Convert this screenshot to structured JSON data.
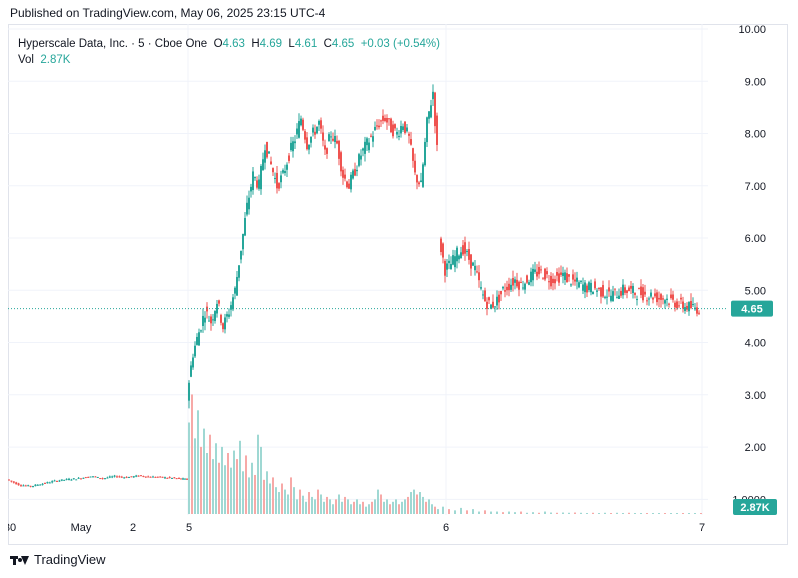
{
  "header": {
    "published": "Published on TradingView.com, May 06, 2025 23:15 UTC-4"
  },
  "legend": {
    "symbol": "Hyperscale Data, Inc. · 5 · Cboe One",
    "o_label": "O",
    "o": "4.63",
    "h_label": "H",
    "h": "4.69",
    "l_label": "L",
    "l": "4.61",
    "c_label": "C",
    "c": "4.65",
    "change": "+0.03 (+0.54%)",
    "vol_label": "Vol",
    "vol": "2.87K"
  },
  "footer": {
    "brand": "TradingView"
  },
  "colors": {
    "up": "#26a69a",
    "down": "#ef5350",
    "volUp": "#9fd8d3",
    "volDown": "#f7a9a7",
    "grid": "#f0f3fa"
  },
  "chart_data": {
    "type": "candlestick",
    "title": "Hyperscale Data, Inc. · 5 · Cboe One",
    "price_axis": {
      "min": 0.7,
      "max": 10.0,
      "ticks": [
        "10.00",
        "9.00",
        "8.00",
        "7.00",
        "6.00",
        "5.00",
        "4.00",
        "3.00",
        "2.00",
        "1.0000"
      ]
    },
    "time_axis": {
      "labels": [
        "30",
        "May",
        "2",
        "5",
        "6",
        "7"
      ]
    },
    "last_price": "4.65",
    "last_volume": "2.87K",
    "series": [
      {
        "name": "pre",
        "points": [
          [
            0,
            1.38
          ],
          [
            12,
            1.28
          ],
          [
            24,
            1.25
          ],
          [
            36,
            1.3
          ],
          [
            48,
            1.35
          ],
          [
            60,
            1.38
          ],
          [
            72,
            1.4
          ],
          [
            84,
            1.44
          ],
          [
            96,
            1.4
          ],
          [
            108,
            1.44
          ],
          [
            120,
            1.42
          ],
          [
            132,
            1.45
          ],
          [
            144,
            1.43
          ],
          [
            156,
            1.42
          ],
          [
            170,
            1.4
          ],
          [
            180,
            1.38
          ]
        ]
      },
      {
        "name": "day5",
        "points": [
          [
            180,
            3.0
          ],
          [
            186,
            3.8
          ],
          [
            192,
            4.2
          ],
          [
            198,
            4.6
          ],
          [
            204,
            4.4
          ],
          [
            210,
            4.8
          ],
          [
            216,
            4.3
          ],
          [
            222,
            4.6
          ],
          [
            228,
            5.0
          ],
          [
            234,
            5.8
          ],
          [
            240,
            6.6
          ],
          [
            246,
            7.2
          ],
          [
            252,
            7.0
          ],
          [
            258,
            7.8
          ],
          [
            264,
            7.4
          ],
          [
            270,
            7.0
          ],
          [
            276,
            7.2
          ],
          [
            282,
            7.6
          ],
          [
            288,
            7.9
          ],
          [
            294,
            8.3
          ],
          [
            300,
            7.8
          ],
          [
            306,
            8.0
          ],
          [
            312,
            8.2
          ],
          [
            318,
            7.6
          ],
          [
            324,
            8.0
          ],
          [
            330,
            7.8
          ],
          [
            336,
            7.2
          ],
          [
            342,
            7.0
          ],
          [
            348,
            7.3
          ],
          [
            354,
            7.6
          ],
          [
            360,
            7.8
          ],
          [
            366,
            8.0
          ],
          [
            372,
            8.2
          ],
          [
            378,
            8.3
          ],
          [
            384,
            8.1
          ],
          [
            390,
            8.0
          ],
          [
            396,
            8.2
          ],
          [
            402,
            7.9
          ],
          [
            408,
            7.2
          ],
          [
            414,
            7.0
          ],
          [
            420,
            8.2
          ],
          [
            426,
            8.8
          ],
          [
            430,
            7.7
          ]
        ]
      },
      {
        "name": "day6",
        "points": [
          [
            432,
            6.0
          ],
          [
            438,
            5.4
          ],
          [
            444,
            5.5
          ],
          [
            450,
            5.7
          ],
          [
            456,
            5.8
          ],
          [
            462,
            5.6
          ],
          [
            468,
            5.4
          ],
          [
            474,
            5.0
          ],
          [
            478,
            4.8
          ],
          [
            484,
            4.7
          ],
          [
            490,
            4.8
          ],
          [
            496,
            5.0
          ],
          [
            502,
            5.1
          ],
          [
            508,
            5.2
          ],
          [
            514,
            5.1
          ],
          [
            520,
            5.2
          ],
          [
            526,
            5.3
          ],
          [
            532,
            5.35
          ],
          [
            538,
            5.3
          ],
          [
            544,
            5.2
          ],
          [
            550,
            5.25
          ],
          [
            556,
            5.3
          ],
          [
            562,
            5.2
          ],
          [
            568,
            5.15
          ],
          [
            574,
            5.1
          ],
          [
            580,
            5.05
          ],
          [
            586,
            5.05
          ],
          [
            592,
            5.0
          ],
          [
            598,
            4.95
          ],
          [
            604,
            4.9
          ],
          [
            610,
            4.95
          ],
          [
            616,
            5.0
          ],
          [
            622,
            5.0
          ],
          [
            628,
            4.95
          ],
          [
            634,
            4.95
          ],
          [
            640,
            4.9
          ],
          [
            646,
            4.9
          ],
          [
            652,
            4.85
          ],
          [
            658,
            4.85
          ],
          [
            664,
            4.8
          ],
          [
            670,
            4.75
          ],
          [
            676,
            4.7
          ],
          [
            682,
            4.68
          ],
          [
            688,
            4.66
          ],
          [
            692,
            4.65
          ]
        ]
      }
    ],
    "volume": {
      "day5": [
        [
          180,
          0.75
        ],
        [
          183,
          0.98
        ],
        [
          186,
          0.62
        ],
        [
          189,
          0.85
        ],
        [
          192,
          0.55
        ],
        [
          195,
          0.7
        ],
        [
          198,
          0.5
        ],
        [
          201,
          0.65
        ],
        [
          204,
          0.45
        ],
        [
          207,
          0.58
        ],
        [
          210,
          0.42
        ],
        [
          213,
          0.55
        ],
        [
          216,
          0.4
        ],
        [
          219,
          0.5
        ],
        [
          222,
          0.38
        ],
        [
          225,
          0.52
        ],
        [
          228,
          0.45
        ],
        [
          231,
          0.6
        ],
        [
          234,
          0.35
        ],
        [
          237,
          0.48
        ],
        [
          240,
          0.3
        ],
        [
          243,
          0.42
        ],
        [
          246,
          0.32
        ],
        [
          249,
          0.65
        ],
        [
          252,
          0.55
        ],
        [
          255,
          0.28
        ],
        [
          258,
          0.35
        ],
        [
          261,
          0.25
        ],
        [
          264,
          0.3
        ],
        [
          267,
          0.22
        ],
        [
          270,
          0.18
        ],
        [
          273,
          0.25
        ],
        [
          276,
          0.2
        ],
        [
          279,
          0.16
        ],
        [
          282,
          0.3
        ],
        [
          285,
          0.22
        ],
        [
          288,
          0.12
        ],
        [
          291,
          0.2
        ],
        [
          294,
          0.15
        ],
        [
          297,
          0.1
        ],
        [
          300,
          0.18
        ],
        [
          303,
          0.14
        ],
        [
          306,
          0.12
        ],
        [
          309,
          0.2
        ],
        [
          312,
          0.16
        ],
        [
          315,
          0.1
        ],
        [
          318,
          0.14
        ],
        [
          321,
          0.12
        ],
        [
          324,
          0.08
        ],
        [
          327,
          0.12
        ],
        [
          330,
          0.16
        ],
        [
          333,
          0.1
        ],
        [
          336,
          0.14
        ],
        [
          339,
          0.12
        ],
        [
          342,
          0.08
        ],
        [
          345,
          0.1
        ],
        [
          348,
          0.12
        ],
        [
          351,
          0.08
        ],
        [
          354,
          0.1
        ],
        [
          357,
          0.06
        ],
        [
          360,
          0.08
        ],
        [
          363,
          0.1
        ],
        [
          366,
          0.12
        ],
        [
          369,
          0.2
        ],
        [
          372,
          0.16
        ],
        [
          375,
          0.1
        ],
        [
          378,
          0.12
        ],
        [
          381,
          0.08
        ],
        [
          384,
          0.1
        ],
        [
          387,
          0.12
        ],
        [
          390,
          0.08
        ],
        [
          393,
          0.1
        ],
        [
          396,
          0.12
        ],
        [
          399,
          0.14
        ],
        [
          402,
          0.18
        ],
        [
          405,
          0.2
        ],
        [
          408,
          0.16
        ],
        [
          411,
          0.18
        ],
        [
          414,
          0.14
        ],
        [
          417,
          0.1
        ],
        [
          420,
          0.12
        ],
        [
          423,
          0.08
        ],
        [
          426,
          0.06
        ],
        [
          429,
          0.04
        ]
      ],
      "day6": [
        [
          434,
          0.06
        ],
        [
          440,
          0.04
        ],
        [
          446,
          0.03
        ],
        [
          452,
          0.05
        ],
        [
          458,
          0.03
        ],
        [
          464,
          0.04
        ],
        [
          470,
          0.02
        ],
        [
          476,
          0.03
        ],
        [
          482,
          0.02
        ],
        [
          488,
          0.02
        ],
        [
          494,
          0.015
        ],
        [
          500,
          0.02
        ],
        [
          506,
          0.015
        ],
        [
          512,
          0.02
        ],
        [
          518,
          0.01
        ],
        [
          524,
          0.015
        ],
        [
          530,
          0.01
        ],
        [
          536,
          0.02
        ],
        [
          542,
          0.012
        ],
        [
          548,
          0.01
        ],
        [
          554,
          0.012
        ],
        [
          560,
          0.01
        ],
        [
          566,
          0.012
        ],
        [
          572,
          0.01
        ],
        [
          578,
          0.008
        ],
        [
          584,
          0.01
        ],
        [
          590,
          0.008
        ],
        [
          596,
          0.01
        ],
        [
          602,
          0.008
        ],
        [
          608,
          0.01
        ],
        [
          614,
          0.008
        ],
        [
          620,
          0.01
        ],
        [
          626,
          0.006
        ],
        [
          632,
          0.008
        ],
        [
          638,
          0.006
        ],
        [
          644,
          0.008
        ],
        [
          650,
          0.006
        ],
        [
          656,
          0.008
        ],
        [
          662,
          0.006
        ],
        [
          668,
          0.006
        ],
        [
          674,
          0.006
        ],
        [
          680,
          0.006
        ],
        [
          686,
          0.006
        ],
        [
          692,
          0.006
        ]
      ]
    }
  }
}
